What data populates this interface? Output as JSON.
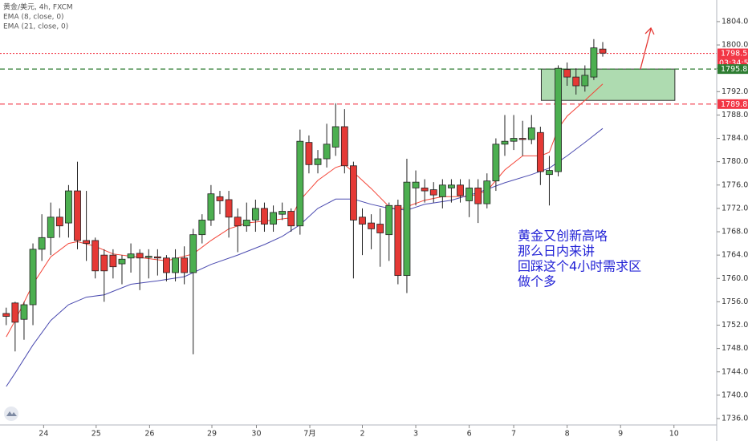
{
  "chart_data": {
    "type": "candlestick",
    "title": "黄金/美元, 4h, FXCM",
    "up_color": "#4caf50",
    "down_color": "#e53935",
    "open": [
      1754,
      1755.8,
      1753,
      1755.5,
      1765,
      1767,
      1770.5,
      1769.5,
      1775,
      1766.5,
      1766.5,
      1764,
      1764,
      1762.5,
      1763.5,
      1764.3,
      1763.6,
      1763.7,
      1763.5,
      1761,
      1763.5,
      1761,
      1767.5,
      1770,
      1774,
      1773.5,
      1770.5,
      1769,
      1770,
      1772,
      1769.3,
      1771,
      1771.5,
      1769,
      1783.3,
      1779.5,
      1780.5,
      1782.5,
      1786,
      1779.3,
      1770.5,
      1769.5,
      1769.3,
      1767.5,
      1772.5,
      1760.5,
      1775.5,
      1775.5,
      1775.2,
      1774,
      1775.5,
      1776,
      1773.3,
      1775.5,
      1772.8,
      1776.7,
      1783,
      1783.5,
      1784,
      1783.8,
      1785,
      1777.8,
      1778.3,
      1795.8,
      1794.5,
      1793,
      1794.5,
      1799.3
    ],
    "high": [
      1755,
      1756,
      1756,
      1766,
      1771,
      1773,
      1772,
      1776,
      1780,
      1775,
      1767,
      1765,
      1765,
      1764,
      1766,
      1765,
      1765,
      1765,
      1764,
      1765,
      1765.5,
      1768.5,
      1771,
      1776,
      1775,
      1775,
      1772,
      1773,
      1773.5,
      1773,
      1772.5,
      1773,
      1772,
      1785.5,
      1784.5,
      1782,
      1786.5,
      1790,
      1789,
      1780,
      1772,
      1771,
      1772,
      1773,
      1773.5,
      1780.5,
      1778.5,
      1777,
      1776.5,
      1777,
      1777,
      1777,
      1777,
      1777,
      1778,
      1784,
      1788,
      1788,
      1787,
      1788,
      1786,
      1781,
      1796.5,
      1797,
      1796,
      1796.5,
      1801,
      1800.5
    ],
    "low": [
      1752,
      1747.5,
      1749.5,
      1752,
      1763,
      1764,
      1767,
      1767,
      1765,
      1763,
      1760,
      1756,
      1760,
      1759,
      1761,
      1758,
      1760,
      1760.5,
      1759.5,
      1759.5,
      1759,
      1747,
      1766,
      1769,
      1771,
      1767,
      1764.5,
      1768,
      1768,
      1768,
      1768,
      1770,
      1768,
      1767.5,
      1778,
      1778,
      1779,
      1781,
      1778,
      1760,
      1764,
      1765,
      1762,
      1763,
      1759,
      1757.5,
      1772.5,
      1773,
      1773,
      1772,
      1773,
      1773,
      1770.5,
      1769.5,
      1772,
      1775,
      1781,
      1782,
      1781,
      1783,
      1776,
      1772.5,
      1777.5,
      1793,
      1791.5,
      1792,
      1794,
      1798
    ],
    "close": [
      1753.5,
      1752.5,
      1755.5,
      1765,
      1767,
      1770.5,
      1769,
      1775,
      1766.5,
      1766,
      1761.3,
      1761.3,
      1762,
      1763.3,
      1764.2,
      1763.5,
      1763.8,
      1763.5,
      1761,
      1763.5,
      1761,
      1767.5,
      1770,
      1774.5,
      1773.3,
      1770.5,
      1769,
      1770,
      1772,
      1769.3,
      1771.3,
      1771.5,
      1769,
      1783.5,
      1779.5,
      1780.5,
      1783,
      1786,
      1779.3,
      1770,
      1769.3,
      1768.5,
      1767.8,
      1772.5,
      1760.5,
      1776.5,
      1776.5,
      1775,
      1774.3,
      1776,
      1776,
      1774.2,
      1775.5,
      1772.8,
      1776.7,
      1783,
      1783.5,
      1784,
      1783.8,
      1785.8,
      1778.3,
      1778.5,
      1796,
      1794.5,
      1793,
      1794.8,
      1799.5,
      1798.6
    ],
    "series": [
      {
        "name": "EMA (8, close, 0)",
        "color": "#f44336",
        "x": [
          0,
          1,
          3,
          5,
          7,
          8,
          10,
          12,
          15,
          18,
          21,
          23,
          25,
          27,
          30,
          32,
          33,
          35,
          37,
          38,
          39,
          41,
          43,
          44,
          45,
          47,
          49,
          52,
          54,
          56,
          58,
          60,
          61,
          62,
          63,
          65,
          67
        ],
        "values": [
          1750,
          1752.8,
          1759,
          1763.7,
          1766,
          1766.3,
          1765.5,
          1764.2,
          1763.6,
          1763,
          1764.2,
          1766.5,
          1768.5,
          1769.5,
          1770,
          1770.4,
          1773.4,
          1776.8,
          1779,
          1779.5,
          1778.2,
          1775.4,
          1772.3,
          1771.7,
          1772.3,
          1773.4,
          1774,
          1774,
          1775,
          1778.6,
          1781,
          1781,
          1781.6,
          1785.7,
          1787.8,
          1790.5,
          1793.3
        ]
      },
      {
        "name": "EMA (21, close, 0)",
        "color": "#4b4bb0",
        "x": [
          0,
          1,
          3,
          5,
          7,
          9,
          11,
          14,
          17,
          20,
          23,
          26,
          29,
          31,
          33,
          35,
          37,
          39,
          41,
          43,
          45,
          47,
          50,
          53,
          56,
          59,
          61,
          63,
          65,
          67
        ],
        "values": [
          1741.5,
          1743.8,
          1748.6,
          1752.8,
          1755.5,
          1756.8,
          1757.2,
          1759,
          1759.6,
          1760.3,
          1762.4,
          1764,
          1765.8,
          1767.2,
          1769.2,
          1772,
          1773.6,
          1773.6,
          1772.7,
          1772,
          1771.7,
          1772.7,
          1773.4,
          1774.7,
          1776.4,
          1777.8,
          1778.9,
          1781,
          1783.3,
          1785.7
        ]
      }
    ],
    "levels": [
      {
        "value": 1798.56,
        "color": "#f23645",
        "style": "dotted"
      },
      {
        "value": 1795.87,
        "color": "#2e7d32",
        "style": "dashed"
      },
      {
        "value": 1789.87,
        "color": "#f23645",
        "style": "dashed"
      }
    ],
    "countdown": "03:34:55",
    "zone": {
      "top": 1795.87,
      "bottom": 1790.5,
      "start": 60.1,
      "end": 75.1
    },
    "annotation": [
      "黄金又创新高咯",
      "那么日内来讲",
      "回踩这个4小时需求区",
      "做个多"
    ],
    "xlim": [
      -0.7,
      79.8
    ],
    "ylim": [
      1734.9,
      1807.7
    ],
    "yticks": [
      {
        "value": 1736,
        "label": "1736.00"
      },
      {
        "value": 1740,
        "label": "1740.00"
      },
      {
        "value": 1744,
        "label": "1744.00"
      },
      {
        "value": 1748,
        "label": "1748.00"
      },
      {
        "value": 1752,
        "label": "1752.00"
      },
      {
        "value": 1756,
        "label": "1756.00"
      },
      {
        "value": 1760,
        "label": "1760.00"
      },
      {
        "value": 1764,
        "label": "1764.00"
      },
      {
        "value": 1768,
        "label": "1768.00"
      },
      {
        "value": 1772,
        "label": "1772.00"
      },
      {
        "value": 1776,
        "label": "1776.00"
      },
      {
        "value": 1780,
        "label": "1780.00"
      },
      {
        "value": 1784,
        "label": "1784.00"
      },
      {
        "value": 1788,
        "label": "1788.00"
      },
      {
        "value": 1792,
        "label": "1792.00"
      },
      {
        "value": 1796,
        "label": "1796.00"
      },
      {
        "value": 1800,
        "label": "1800.00"
      },
      {
        "value": 1804,
        "label": "1804.00"
      }
    ],
    "xticks": [
      {
        "value": 4.2,
        "label": "24"
      },
      {
        "value": 10.1,
        "label": "25"
      },
      {
        "value": 16.1,
        "label": "26"
      },
      {
        "value": 23.1,
        "label": "29"
      },
      {
        "value": 28.1,
        "label": "30"
      },
      {
        "value": 34.1,
        "label": "7月"
      },
      {
        "value": 40,
        "label": "2"
      },
      {
        "value": 46,
        "label": "3"
      },
      {
        "value": 52,
        "label": "6"
      },
      {
        "value": 57,
        "label": "7"
      },
      {
        "value": 63,
        "label": "8"
      },
      {
        "value": 69,
        "label": "9"
      },
      {
        "value": 75,
        "label": "10"
      }
    ]
  }
}
